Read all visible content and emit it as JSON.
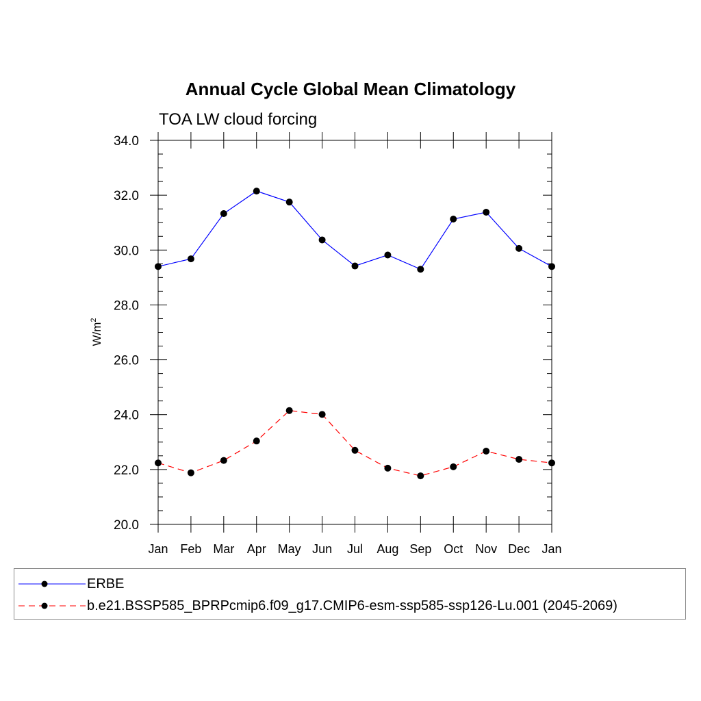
{
  "chart_data": {
    "type": "line",
    "title": "Annual Cycle Global Mean Climatology",
    "subtitle": "TOA LW cloud forcing",
    "ylabel_base": "W/m",
    "ylabel_sup": "2",
    "xlabel": "",
    "categories": [
      "Jan",
      "Feb",
      "Mar",
      "Apr",
      "May",
      "Jun",
      "Jul",
      "Aug",
      "Sep",
      "Oct",
      "Nov",
      "Dec",
      "Jan"
    ],
    "ylim": [
      20.0,
      34.0
    ],
    "yticks": [
      "20.0",
      "22.0",
      "24.0",
      "26.0",
      "28.0",
      "30.0",
      "32.0",
      "34.0"
    ],
    "series": [
      {
        "name": "ERBE",
        "color": "#0000ff",
        "style": "solid",
        "values": [
          29.4,
          29.68,
          31.33,
          32.15,
          31.75,
          30.37,
          29.42,
          29.82,
          29.3,
          31.13,
          31.38,
          30.06,
          29.4
        ]
      },
      {
        "name": "b.e21.BSSP585_BPRPcmip6.f09_g17.CMIP6-esm-ssp585-ssp126-Lu.001 (2045-2069)",
        "color": "#ff0000",
        "style": "dashed",
        "values": [
          22.24,
          21.88,
          22.33,
          23.04,
          24.15,
          24.01,
          22.7,
          22.05,
          21.77,
          22.1,
          22.67,
          22.37,
          22.24
        ]
      }
    ]
  }
}
